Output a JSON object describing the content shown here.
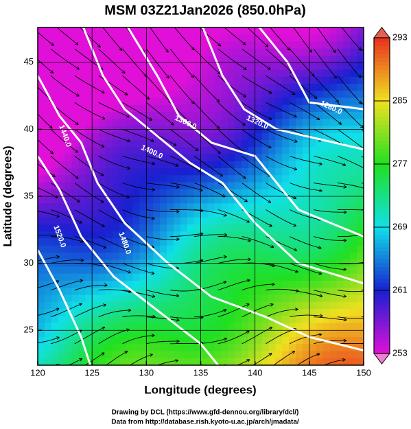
{
  "chart_data": {
    "type": "field-map",
    "title": "MSM 03Z21Jan2026 (850.0hPa)",
    "x_label": "Longitude (degrees)",
    "y_label": "Latitude  (degrees)",
    "xlim": [
      120,
      150
    ],
    "ylim": [
      22.4,
      47.6
    ],
    "xticks": [
      120,
      125,
      130,
      135,
      140,
      145,
      150
    ],
    "yticks": [
      25,
      30,
      35,
      40,
      45
    ],
    "grid": true,
    "clim": [
      253,
      293
    ],
    "cticks": [
      253,
      261,
      269,
      277,
      285,
      293
    ],
    "colormap": [
      "#e010d8",
      "#1820d0",
      "#10e0e8",
      "#20e020",
      "#f0e020",
      "#e83020"
    ],
    "contours": [
      {
        "value": 1280,
        "label": "1280.0"
      },
      {
        "value": 1320,
        "label": "1320.0"
      },
      {
        "value": 1360,
        "label": "1360.0"
      },
      {
        "value": 1400,
        "label": "1400.0"
      },
      {
        "value": 1440,
        "label": "1440.0"
      },
      {
        "value": 1480,
        "label": "1480.0"
      },
      {
        "value": 1520,
        "label": "1520.0"
      }
    ],
    "credits": [
      "Drawing by DCL (https://www.gfd-dennou.org/library/dcl/)",
      "Data from http://database.rish.kyoto-u.ac.jp/arch/jmadata/"
    ]
  }
}
